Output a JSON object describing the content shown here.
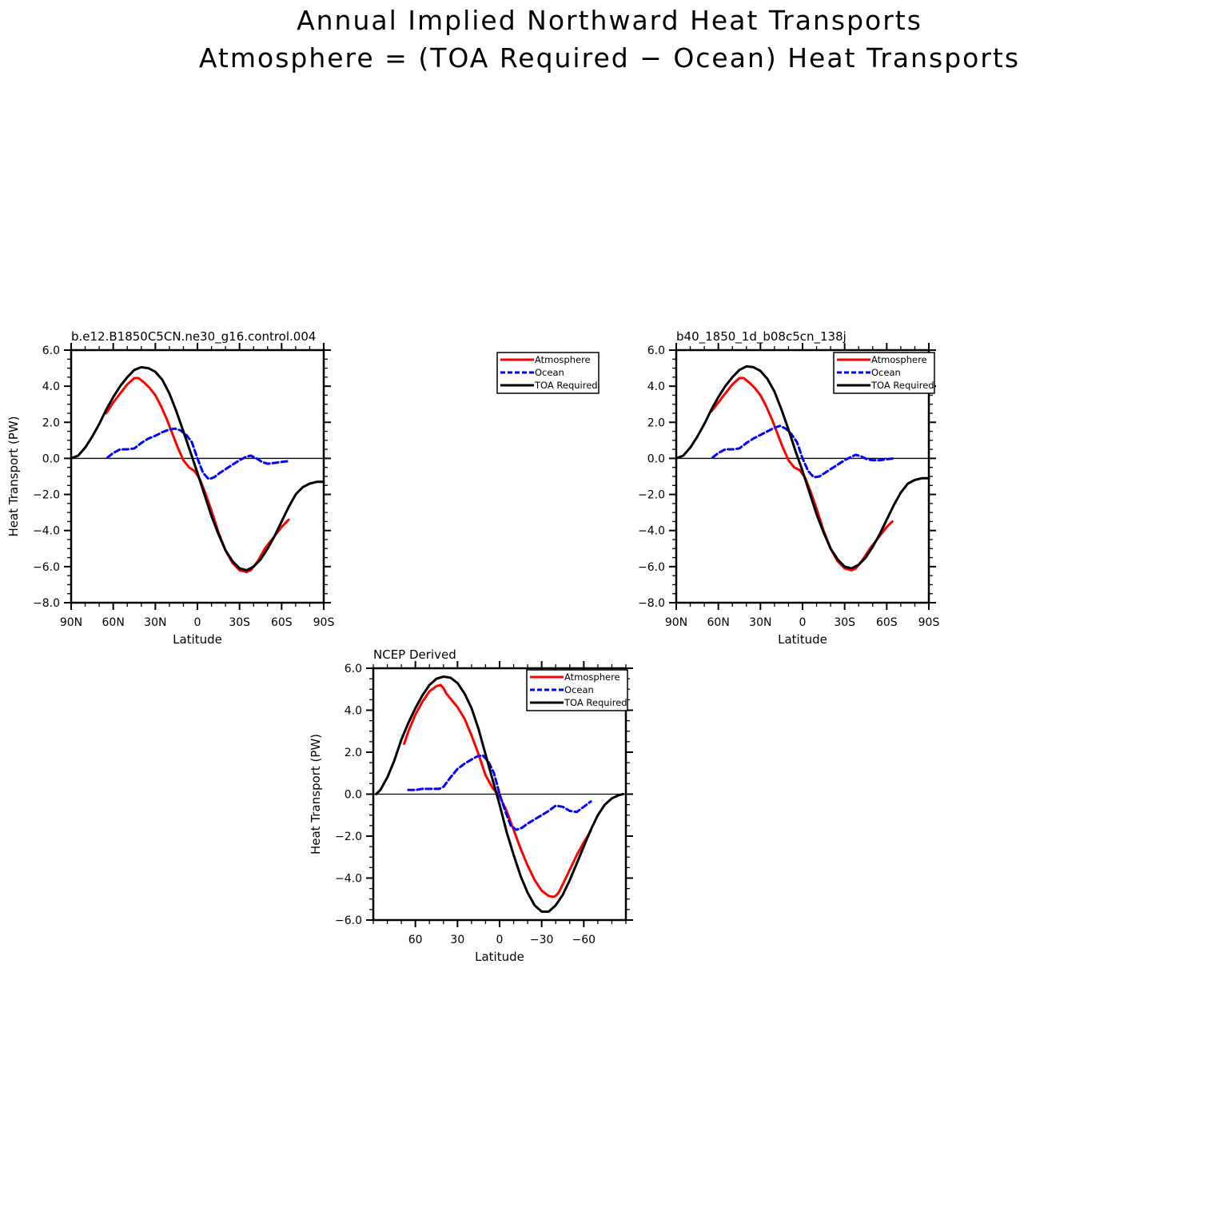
{
  "figure": {
    "title_line1": "Annual Implied Northward Heat Transports",
    "title_line2": "Atmosphere = (TOA Required − Ocean) Heat Transports"
  },
  "legend_labels": [
    "Atmosphere",
    "Ocean",
    "TOA Required"
  ],
  "colors": {
    "atmosphere": "#ff0000",
    "ocean": "#0000ff",
    "toa": "#000000"
  },
  "chart_data": [
    {
      "type": "line",
      "title": "b.e12.B1850C5CN.ne30_g16.control.004",
      "xlabel": "Latitude",
      "ylabel": "Heat Transport (PW)",
      "xlim": [
        90,
        -90
      ],
      "ylim": [
        -8,
        6
      ],
      "xticks": [
        90,
        60,
        30,
        0,
        -30,
        -60,
        -90
      ],
      "xtick_labels": [
        "90N",
        "60N",
        "30N",
        "0",
        "30S",
        "60S",
        "90S"
      ],
      "yticks": [
        6,
        4,
        2,
        0,
        -2,
        -4,
        -6,
        -8
      ],
      "ytick_labels": [
        "6.0",
        "4.0",
        "2.0",
        "0.0",
        "−2.0",
        "−4.0",
        "−6.0",
        "−8.0"
      ],
      "zero_line": true,
      "series": [
        {
          "name": "Atmosphere",
          "style": "solid",
          "x": [
            65,
            60,
            55,
            50,
            45,
            42,
            38,
            34,
            30,
            26,
            22,
            18,
            14,
            10,
            6,
            2,
            -2,
            -6,
            -10,
            -15,
            -20,
            -25,
            -30,
            -35,
            -38,
            -40,
            -43,
            -48,
            -55,
            -60,
            -65
          ],
          "y": [
            2.5,
            3.1,
            3.6,
            4.1,
            4.45,
            4.45,
            4.2,
            3.9,
            3.5,
            2.9,
            2.2,
            1.4,
            0.6,
            -0.1,
            -0.5,
            -0.7,
            -1.2,
            -2.0,
            -2.9,
            -4.1,
            -5.1,
            -5.8,
            -6.2,
            -6.3,
            -6.2,
            -6.0,
            -5.7,
            -5.0,
            -4.3,
            -3.8,
            -3.4
          ]
        },
        {
          "name": "Ocean",
          "style": "dashed",
          "x": [
            64,
            60,
            55,
            50,
            45,
            40,
            35,
            30,
            25,
            20,
            16,
            12,
            8,
            4,
            0,
            -4,
            -8,
            -12,
            -16,
            -20,
            -25,
            -30,
            -35,
            -38,
            -42,
            -46,
            -50,
            -55,
            -60,
            -65
          ],
          "y": [
            0.05,
            0.3,
            0.5,
            0.5,
            0.55,
            0.85,
            1.1,
            1.25,
            1.45,
            1.6,
            1.65,
            1.55,
            1.3,
            0.9,
            0.0,
            -0.8,
            -1.15,
            -1.05,
            -0.8,
            -0.6,
            -0.35,
            -0.1,
            0.1,
            0.15,
            0.0,
            -0.2,
            -0.3,
            -0.25,
            -0.2,
            -0.15
          ]
        },
        {
          "name": "TOA Required",
          "style": "solid",
          "x": [
            90,
            85,
            80,
            75,
            70,
            65,
            60,
            55,
            50,
            45,
            40,
            35,
            30,
            25,
            20,
            15,
            10,
            5,
            0,
            -5,
            -10,
            -15,
            -20,
            -25,
            -30,
            -35,
            -40,
            -45,
            -50,
            -55,
            -60,
            -65,
            -70,
            -75,
            -80,
            -85,
            -90
          ],
          "y": [
            0.0,
            0.15,
            0.6,
            1.2,
            1.9,
            2.7,
            3.4,
            4.0,
            4.5,
            4.9,
            5.05,
            5.0,
            4.8,
            4.35,
            3.6,
            2.6,
            1.5,
            0.35,
            -0.8,
            -2.0,
            -3.2,
            -4.2,
            -5.1,
            -5.7,
            -6.1,
            -6.2,
            -6.0,
            -5.6,
            -5.0,
            -4.3,
            -3.5,
            -2.7,
            -2.0,
            -1.6,
            -1.4,
            -1.3,
            -1.3
          ]
        }
      ]
    },
    {
      "type": "line",
      "title": "b40_1850_1d_b08c5cn_138j",
      "xlabel": "Latitude",
      "ylabel": "",
      "xlim": [
        90,
        -90
      ],
      "ylim": [
        -8,
        6
      ],
      "xticks": [
        90,
        60,
        30,
        0,
        -30,
        -60,
        -90
      ],
      "xtick_labels": [
        "90N",
        "60N",
        "30N",
        "0",
        "30S",
        "60S",
        "90S"
      ],
      "yticks": [
        6,
        4,
        2,
        0,
        -2,
        -4,
        -6,
        -8
      ],
      "ytick_labels": [
        "6.0",
        "4.0",
        "2.0",
        "0.0",
        "−2.0",
        "−4.0",
        "−6.0",
        "−8.0"
      ],
      "zero_line": true,
      "series": [
        {
          "name": "Atmosphere",
          "style": "solid",
          "x": [
            65,
            60,
            55,
            50,
            45,
            42,
            38,
            34,
            30,
            26,
            22,
            18,
            14,
            10,
            6,
            2,
            -2,
            -6,
            -10,
            -15,
            -20,
            -25,
            -30,
            -35,
            -38,
            -40,
            -43,
            -48,
            -55,
            -60,
            -64
          ],
          "y": [
            2.6,
            3.1,
            3.6,
            4.1,
            4.45,
            4.45,
            4.2,
            3.9,
            3.5,
            2.9,
            2.2,
            1.4,
            0.6,
            -0.1,
            -0.5,
            -0.65,
            -1.1,
            -1.9,
            -2.8,
            -4.0,
            -5.0,
            -5.7,
            -6.1,
            -6.2,
            -6.1,
            -5.9,
            -5.6,
            -5.0,
            -4.3,
            -3.8,
            -3.5
          ]
        },
        {
          "name": "Ocean",
          "style": "dashed",
          "x": [
            64,
            60,
            55,
            50,
            45,
            40,
            35,
            30,
            25,
            20,
            16,
            12,
            8,
            4,
            0,
            -4,
            -8,
            -12,
            -16,
            -20,
            -25,
            -30,
            -35,
            -38,
            -42,
            -46,
            -50,
            -55,
            -60,
            -65
          ],
          "y": [
            0.05,
            0.3,
            0.5,
            0.5,
            0.55,
            0.85,
            1.1,
            1.3,
            1.5,
            1.7,
            1.8,
            1.65,
            1.35,
            0.9,
            0.0,
            -0.7,
            -1.05,
            -1.0,
            -0.8,
            -0.6,
            -0.35,
            -0.1,
            0.1,
            0.2,
            0.1,
            -0.05,
            -0.1,
            -0.1,
            -0.05,
            0.0
          ]
        },
        {
          "name": "TOA Required",
          "style": "solid",
          "x": [
            90,
            85,
            80,
            75,
            70,
            65,
            60,
            55,
            50,
            45,
            40,
            35,
            30,
            25,
            20,
            15,
            10,
            5,
            0,
            -5,
            -10,
            -15,
            -20,
            -25,
            -30,
            -35,
            -40,
            -45,
            -50,
            -55,
            -60,
            -65,
            -70,
            -75,
            -80,
            -85,
            -90
          ],
          "y": [
            0.0,
            0.15,
            0.6,
            1.2,
            1.9,
            2.7,
            3.4,
            4.0,
            4.5,
            4.9,
            5.1,
            5.05,
            4.85,
            4.4,
            3.7,
            2.7,
            1.6,
            0.4,
            -0.7,
            -1.9,
            -3.1,
            -4.1,
            -5.0,
            -5.6,
            -6.0,
            -6.1,
            -5.9,
            -5.5,
            -4.9,
            -4.2,
            -3.4,
            -2.6,
            -1.9,
            -1.4,
            -1.2,
            -1.1,
            -1.1
          ]
        }
      ]
    },
    {
      "type": "line",
      "title": "NCEP Derived",
      "xlabel": "Latitude",
      "ylabel": "Heat Transport (PW)",
      "xlim": [
        90,
        -90
      ],
      "ylim": [
        -6,
        6
      ],
      "xticks": [
        60,
        30,
        0,
        -30,
        -60
      ],
      "xtick_labels": [
        "60",
        "30",
        "0",
        "−30",
        "−60"
      ],
      "yticks": [
        6,
        4,
        2,
        0,
        -2,
        -4,
        -6
      ],
      "ytick_labels": [
        "6.0",
        "4.0",
        "2.0",
        "0.0",
        "−2.0",
        "−4.0",
        "−6.0"
      ],
      "zero_line": true,
      "series": [
        {
          "name": "Atmosphere",
          "style": "solid",
          "x": [
            68,
            65,
            60,
            55,
            50,
            45,
            42,
            40,
            38,
            35,
            30,
            25,
            20,
            15,
            10,
            5,
            0,
            -5,
            -10,
            -15,
            -20,
            -25,
            -30,
            -35,
            -38,
            -40,
            -42,
            -45,
            -50,
            -55,
            -60,
            -65
          ],
          "y": [
            2.4,
            3.0,
            3.8,
            4.4,
            4.9,
            5.15,
            5.2,
            5.05,
            4.8,
            4.55,
            4.15,
            3.6,
            2.8,
            1.9,
            0.9,
            0.3,
            -0.1,
            -0.8,
            -1.7,
            -2.6,
            -3.4,
            -4.1,
            -4.6,
            -4.85,
            -4.9,
            -4.85,
            -4.7,
            -4.3,
            -3.6,
            -2.9,
            -2.3,
            -1.75
          ]
        },
        {
          "name": "Ocean",
          "style": "dashed",
          "x": [
            65,
            60,
            55,
            50,
            45,
            43,
            40,
            35,
            30,
            25,
            20,
            16,
            12,
            8,
            4,
            0,
            -4,
            -8,
            -12,
            -16,
            -20,
            -25,
            -30,
            -35,
            -40,
            -45,
            -50,
            -55,
            -60,
            -65
          ],
          "y": [
            0.2,
            0.2,
            0.25,
            0.25,
            0.25,
            0.25,
            0.35,
            0.8,
            1.2,
            1.45,
            1.65,
            1.8,
            1.85,
            1.55,
            1.0,
            0.0,
            -0.8,
            -1.5,
            -1.7,
            -1.6,
            -1.4,
            -1.2,
            -1.0,
            -0.8,
            -0.55,
            -0.6,
            -0.8,
            -0.85,
            -0.6,
            -0.35
          ]
        },
        {
          "name": "TOA Required",
          "style": "solid",
          "x": [
            88,
            85,
            80,
            75,
            70,
            65,
            60,
            55,
            50,
            45,
            40,
            35,
            30,
            25,
            20,
            15,
            10,
            5,
            0,
            -5,
            -10,
            -15,
            -20,
            -25,
            -30,
            -35,
            -40,
            -45,
            -50,
            -55,
            -60,
            -65,
            -70,
            -75,
            -80,
            -85,
            -88
          ],
          "y": [
            0.0,
            0.2,
            0.8,
            1.6,
            2.6,
            3.4,
            4.1,
            4.7,
            5.2,
            5.5,
            5.6,
            5.55,
            5.3,
            4.8,
            4.1,
            3.1,
            1.9,
            0.7,
            -0.5,
            -1.8,
            -2.9,
            -3.9,
            -4.7,
            -5.3,
            -5.6,
            -5.6,
            -5.3,
            -4.8,
            -4.1,
            -3.3,
            -2.5,
            -1.7,
            -1.0,
            -0.5,
            -0.2,
            -0.05,
            0.0
          ]
        }
      ]
    }
  ]
}
